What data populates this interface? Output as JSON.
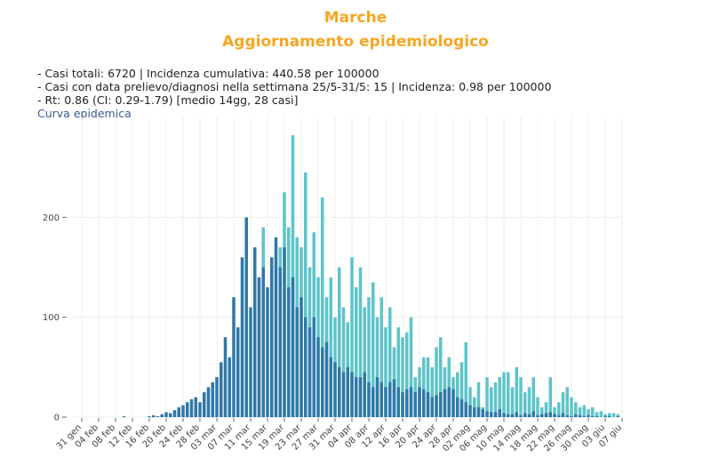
{
  "chart_data": {
    "type": "bar",
    "title": "Marche",
    "subtitle": "Aggiornamento epidemiologico",
    "info": [
      "- Casi totali: 6720 | Incidenza cumulativa: 440.58 per 100000",
      "- Casi con data prelievo/diagnosi nella settimana 25/5-31/5: 15 | Incidenza: 0.98 per 100000",
      "- Rt: 0.86 (CI: 0.29-1.79) [medio 14gg, 28 casi]"
    ],
    "label": "Curva epidemica",
    "categories": [
      "31 gen",
      null,
      null,
      null,
      "04 feb",
      null,
      null,
      null,
      "08 feb",
      null,
      null,
      null,
      "12 feb",
      null,
      null,
      null,
      "16 feb",
      null,
      null,
      null,
      "20 feb",
      null,
      null,
      null,
      "24 feb",
      null,
      null,
      null,
      "28 feb",
      null,
      null,
      null,
      "03 mar",
      null,
      null,
      null,
      "07 mar",
      null,
      null,
      null,
      "11 mar",
      null,
      null,
      null,
      "15 mar",
      null,
      null,
      null,
      "19 mar",
      null,
      null,
      null,
      "23 mar",
      null,
      null,
      null,
      "27 mar",
      null,
      null,
      null,
      "31 mar",
      null,
      null,
      null,
      "04 apr",
      null,
      null,
      null,
      "08 apr",
      null,
      null,
      null,
      "12 apr",
      null,
      null,
      null,
      "16 apr",
      null,
      null,
      null,
      "20 apr",
      null,
      null,
      null,
      "24 apr",
      null,
      null,
      null,
      "28 apr",
      null,
      null,
      null,
      "02 mag",
      null,
      null,
      null,
      "06 mag",
      null,
      null,
      null,
      "10 mag",
      null,
      null,
      null,
      "14 mag",
      null,
      null,
      null,
      "18 mag",
      null,
      null,
      null,
      "22 mag",
      null,
      null,
      null,
      "26 mag",
      null,
      null,
      null,
      "30 mag",
      null,
      null,
      null,
      "03 giu",
      null,
      null,
      null,
      "07 giu"
    ],
    "series": [
      {
        "color": "#5ec4c9",
        "values": [
          0,
          0,
          0,
          0,
          0,
          0,
          0,
          0,
          0,
          0,
          0,
          0,
          0,
          0,
          0,
          0,
          0,
          0,
          0,
          0,
          0,
          0,
          0,
          0,
          0,
          0,
          0,
          0,
          0,
          0,
          0,
          0,
          0,
          0,
          0,
          0,
          0,
          0,
          0,
          0,
          0,
          0,
          0,
          190,
          0,
          150,
          0,
          170,
          225,
          190,
          282,
          180,
          170,
          245,
          150,
          185,
          140,
          220,
          120,
          140,
          100,
          150,
          110,
          95,
          160,
          130,
          150,
          110,
          120,
          135,
          100,
          120,
          90,
          110,
          70,
          90,
          80,
          85,
          100,
          40,
          50,
          60,
          60,
          50,
          70,
          80,
          50,
          60,
          40,
          45,
          55,
          75,
          30,
          20,
          35,
          10,
          40,
          30,
          35,
          40,
          45,
          45,
          30,
          50,
          40,
          25,
          30,
          40,
          20,
          10,
          15,
          40,
          10,
          15,
          25,
          30,
          20,
          15,
          10,
          12,
          8,
          10,
          5,
          6,
          3,
          4,
          4,
          3,
          0
        ]
      },
      {
        "color": "#2f78a8",
        "values": [
          0,
          0,
          0,
          0,
          0,
          0,
          0,
          0,
          0,
          0,
          1,
          0,
          0,
          0,
          0,
          0,
          1,
          2,
          1,
          3,
          5,
          4,
          7,
          10,
          12,
          15,
          18,
          20,
          15,
          25,
          30,
          35,
          40,
          55,
          80,
          60,
          120,
          90,
          160,
          200,
          110,
          170,
          140,
          150,
          130,
          160,
          180,
          150,
          170,
          130,
          140,
          110,
          120,
          100,
          90,
          100,
          80,
          70,
          75,
          60,
          55,
          50,
          45,
          50,
          45,
          40,
          40,
          45,
          35,
          30,
          40,
          35,
          30,
          35,
          38,
          30,
          25,
          28,
          30,
          25,
          30,
          28,
          25,
          20,
          22,
          25,
          28,
          30,
          28,
          20,
          18,
          15,
          12,
          10,
          10,
          8,
          6,
          5,
          5,
          8,
          4,
          3,
          3,
          5,
          2,
          4,
          3,
          6,
          2,
          3,
          4,
          5,
          3,
          2,
          4,
          2,
          1,
          3,
          2,
          1,
          2,
          1,
          1,
          0,
          1,
          1,
          0,
          1,
          0
        ]
      }
    ],
    "ylim": [
      0,
      300
    ],
    "yticks": [
      0,
      100,
      200
    ],
    "grid": true
  }
}
